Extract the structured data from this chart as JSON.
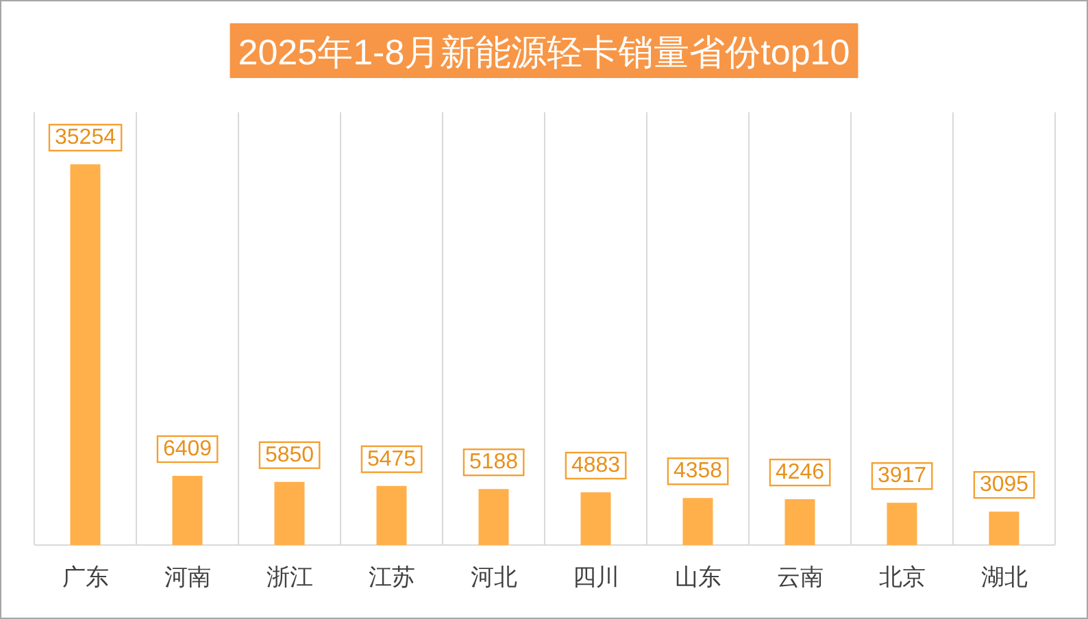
{
  "chart_data": {
    "type": "bar",
    "title": "2025年1-8月新能源轻卡销量省份top10",
    "categories": [
      "广东",
      "河南",
      "浙江",
      "江苏",
      "河北",
      "四川",
      "山东",
      "云南",
      "北京",
      "湖北"
    ],
    "series": [
      {
        "color": "#ffb04a",
        "values": [
          35254,
          6409,
          5850,
          5475,
          5188,
          4883,
          4358,
          4246,
          3917,
          3095
        ]
      }
    ],
    "data_labels": true,
    "grid": "x"
  }
}
